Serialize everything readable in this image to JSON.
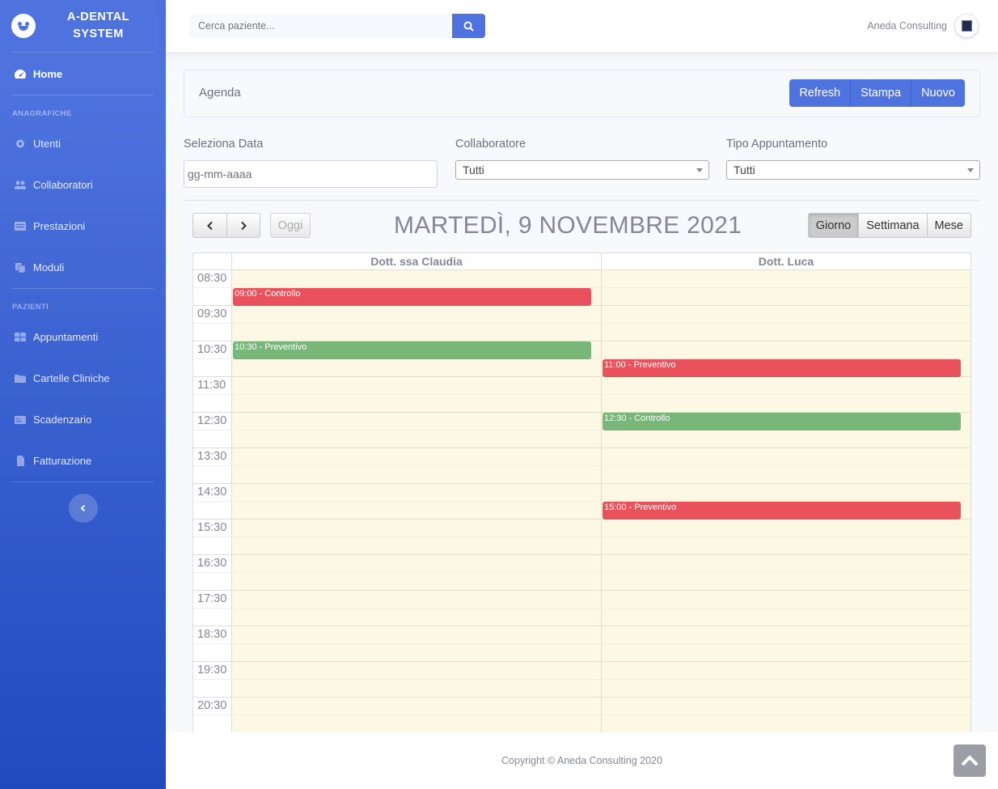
{
  "brand": {
    "line1": "A-DENTAL",
    "line2": "SYSTEM",
    "icon": "laughing-face-icon"
  },
  "sidebar": {
    "home": {
      "label": "Home",
      "icon": "tachometer-icon"
    },
    "section_anagrafiche": "ANAGRAFICHE",
    "anagrafiche": [
      {
        "label": "Utenti",
        "icon": "gear-icon"
      },
      {
        "label": "Collaboratori",
        "icon": "users-icon"
      },
      {
        "label": "Prestazioni",
        "icon": "list-icon"
      },
      {
        "label": "Moduli",
        "icon": "copy-icon"
      }
    ],
    "section_pazienti": "PAZIENTI",
    "pazienti": [
      {
        "label": "Appuntamenti",
        "icon": "table-icon"
      },
      {
        "label": "Cartelle Cliniche",
        "icon": "folder-icon"
      },
      {
        "label": "Scadenzario",
        "icon": "calendar-icon"
      },
      {
        "label": "Fatturazione",
        "icon": "file-icon"
      }
    ],
    "toggle_icon": "chevron-left-icon"
  },
  "topbar": {
    "search_placeholder": "Cerca paziente...",
    "search_icon": "search-icon",
    "user_name": "Aneda Consulting"
  },
  "agenda": {
    "title": "Agenda",
    "buttons": {
      "refresh": "Refresh",
      "print": "Stampa",
      "new": "Nuovo"
    }
  },
  "filters": {
    "date_label": "Seleziona Data",
    "date_placeholder": "gg-mm-aaaa",
    "collab_label": "Collaboratore",
    "collab_value": "Tutti",
    "type_label": "Tipo Appuntamento",
    "type_value": "Tutti"
  },
  "calendar": {
    "title": "MARTEDÌ, 9 NOVEMBRE 2021",
    "today_label": "Oggi",
    "prev_icon": "chevron-left-icon",
    "next_icon": "chevron-right-icon",
    "views": [
      "Giorno",
      "Settimana",
      "Mese"
    ],
    "active_view": "Giorno",
    "resources": [
      "Dott. ssa Claudia",
      "Dott. Luca"
    ],
    "start_time": "08:30",
    "time_labels": [
      "08:30",
      "09:30",
      "10:30",
      "11:30",
      "12:30",
      "13:30",
      "14:30",
      "15:30",
      "16:30",
      "17:30",
      "18:30",
      "19:30",
      "20:30"
    ],
    "events": [
      {
        "resource": 0,
        "start": "09:00",
        "label": "09:00 - Controllo",
        "color": "#e9515c"
      },
      {
        "resource": 0,
        "start": "10:30",
        "label": "10:30 - Preventivo",
        "color": "#79b67a"
      },
      {
        "resource": 1,
        "start": "11:00",
        "label": "11:00 - Preventivo",
        "color": "#e9515c"
      },
      {
        "resource": 1,
        "start": "12:30",
        "label": "12:30 - Controllo",
        "color": "#79b67a"
      },
      {
        "resource": 1,
        "start": "15:00",
        "label": "15:00 - Preventivo",
        "color": "#e9515c"
      }
    ]
  },
  "footer": {
    "copyright": "Copyright © Aneda Consulting 2020",
    "scroll_icon": "angle-up-icon"
  },
  "colors": {
    "primary": "#4e73df",
    "event_red": "#e9515c",
    "event_green": "#79b67a",
    "slot_bg": "#fcf8e3"
  }
}
